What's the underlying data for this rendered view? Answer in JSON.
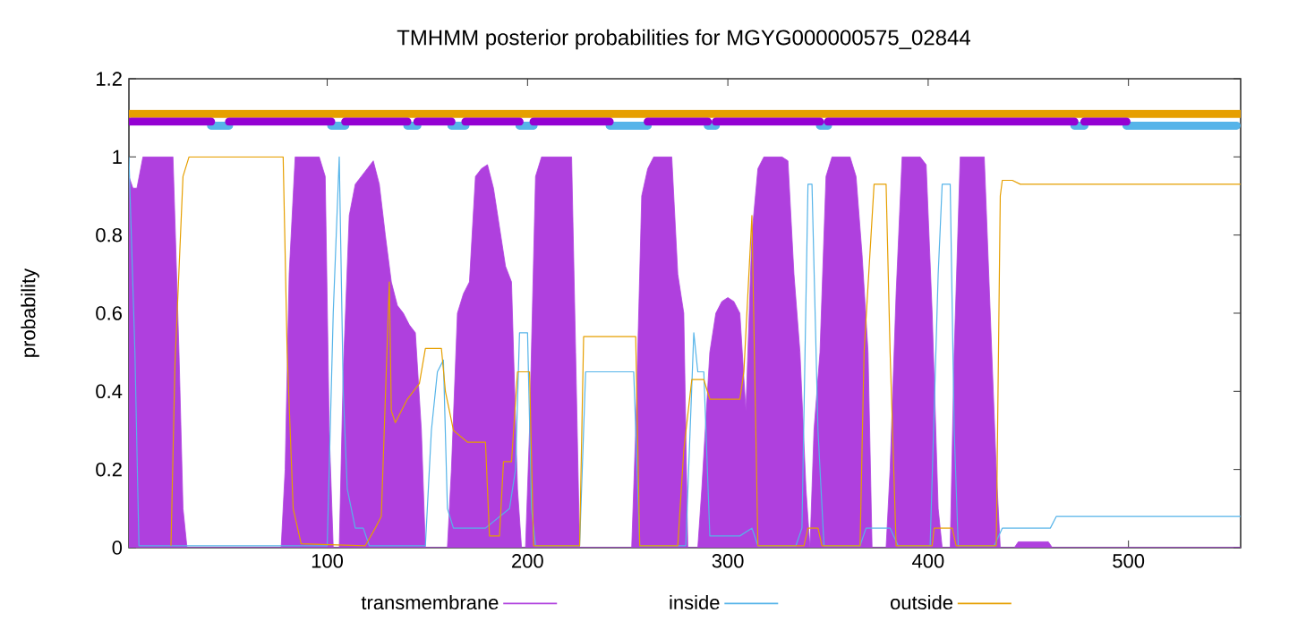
{
  "chart_data": {
    "type": "line",
    "title": "TMHMM posterior probabilities for MGYG000000575_02844",
    "ylabel": "probability",
    "xlim": [
      1,
      556
    ],
    "ylim": [
      0,
      1.2
    ],
    "xticks": [
      100,
      200,
      300,
      400,
      500
    ],
    "yticks": [
      0,
      0.2,
      0.4,
      0.6,
      0.8,
      1,
      1.2
    ],
    "legend": "bottom",
    "series": [
      {
        "name": "transmembrane",
        "type": "area",
        "color": "#af40de",
        "x": [
          1,
          3,
          5,
          8,
          11,
          14,
          17,
          20,
          23,
          26,
          28,
          30,
          77,
          79,
          81,
          84,
          87,
          90,
          93,
          96,
          99,
          101,
          103,
          106,
          108,
          111,
          114,
          117,
          120,
          123,
          126,
          129,
          132,
          135,
          138,
          141,
          144,
          147,
          149,
          160,
          162,
          165,
          168,
          171,
          174,
          177,
          180,
          183,
          186,
          189,
          192,
          195,
          197,
          199,
          201,
          204,
          207,
          210,
          213,
          216,
          219,
          222,
          224,
          226,
          252,
          254,
          257,
          260,
          263,
          266,
          269,
          272,
          275,
          278,
          280,
          285,
          287,
          291,
          294,
          297,
          300,
          303,
          306,
          309,
          312,
          315,
          318,
          321,
          324,
          327,
          330,
          333,
          336,
          339,
          341,
          343,
          346,
          349,
          352,
          355,
          358,
          361,
          364,
          367,
          370,
          372,
          379,
          381,
          384,
          387,
          390,
          393,
          396,
          399,
          402,
          405,
          407,
          411,
          413,
          416,
          419,
          422,
          425,
          428,
          431,
          434,
          436,
          443,
          445,
          450,
          455,
          460,
          462,
          556
        ],
        "values": [
          0.95,
          0.92,
          0.92,
          1,
          1,
          1,
          1,
          1,
          1,
          0.5,
          0.1,
          0,
          0,
          0.2,
          0.7,
          1,
          1,
          1,
          1,
          1,
          0.95,
          0.3,
          0,
          0,
          0.45,
          0.85,
          0.93,
          0.95,
          0.97,
          0.99,
          0.93,
          0.8,
          0.68,
          0.62,
          0.6,
          0.57,
          0.55,
          0.3,
          0,
          0,
          0.2,
          0.6,
          0.65,
          0.68,
          0.95,
          0.97,
          0.98,
          0.92,
          0.82,
          0.72,
          0.68,
          0.15,
          0,
          0,
          0.3,
          0.95,
          1,
          1,
          1,
          1,
          1,
          1,
          0.5,
          0,
          0,
          0.3,
          0.9,
          0.97,
          1,
          1,
          1,
          1,
          0.7,
          0.6,
          0,
          0,
          0.15,
          0.5,
          0.6,
          0.63,
          0.64,
          0.63,
          0.6,
          0.35,
          0.8,
          0.97,
          1,
          1,
          1,
          1,
          0.99,
          0.7,
          0.5,
          0.15,
          0,
          0.3,
          0.5,
          0.95,
          1,
          1,
          1,
          1,
          0.95,
          0.75,
          0.5,
          0,
          0,
          0.2,
          0.65,
          1,
          1,
          1,
          1,
          0.98,
          0.6,
          0.1,
          0,
          0,
          0.5,
          1,
          1,
          1,
          1,
          1,
          0.6,
          0.2,
          0,
          0,
          0.015,
          0.015,
          0.015,
          0.015,
          0,
          0
        ]
      },
      {
        "name": "inside",
        "color": "#56b4e9",
        "x": [
          1,
          4,
          6,
          100,
          103,
          106,
          108,
          110,
          114,
          118,
          121,
          149,
          152,
          155,
          158,
          160,
          163,
          179,
          191,
          194,
          196,
          200,
          202,
          204,
          226,
          229,
          253,
          256,
          279,
          283,
          285,
          288,
          291,
          306,
          312,
          315,
          334,
          337,
          340,
          342,
          345,
          348,
          366,
          369,
          381,
          385,
          401,
          405,
          407,
          411,
          413,
          415,
          433,
          437,
          461,
          464,
          556
        ],
        "values": [
          1,
          0.5,
          0.005,
          0.005,
          0.6,
          1,
          0.4,
          0.15,
          0.05,
          0.05,
          0.005,
          0.005,
          0.3,
          0.45,
          0.48,
          0.1,
          0.05,
          0.05,
          0.1,
          0.2,
          0.55,
          0.55,
          0.1,
          0.005,
          0.005,
          0.45,
          0.45,
          0.005,
          0.005,
          0.55,
          0.45,
          0.45,
          0.03,
          0.03,
          0.05,
          0.005,
          0.005,
          0.05,
          0.93,
          0.93,
          0.3,
          0.005,
          0.005,
          0.05,
          0.05,
          0.005,
          0.005,
          0.7,
          0.93,
          0.93,
          0.3,
          0.005,
          0.005,
          0.05,
          0.05,
          0.08,
          0.08
        ]
      },
      {
        "name": "outside",
        "color": "#e69f00",
        "x": [
          22,
          24,
          28,
          31,
          78,
          80,
          83,
          87,
          119,
          124,
          127,
          131,
          132,
          134,
          140,
          146,
          149,
          157,
          159,
          163,
          170,
          179,
          181,
          186,
          188,
          192,
          195,
          201,
          203,
          226,
          228,
          254,
          256,
          275,
          278,
          282,
          288,
          291,
          306,
          308,
          312,
          315,
          338,
          340,
          345,
          347,
          366,
          368,
          373,
          379,
          381,
          384,
          402,
          403,
          412,
          414,
          434,
          436,
          437,
          442,
          446,
          556
        ],
        "values": [
          0.005,
          0.47,
          0.95,
          1,
          1,
          0.5,
          0.1,
          0.01,
          0.005,
          0.05,
          0.08,
          0.68,
          0.35,
          0.32,
          0.38,
          0.42,
          0.51,
          0.51,
          0.4,
          0.3,
          0.27,
          0.27,
          0.03,
          0.03,
          0.22,
          0.22,
          0.45,
          0.45,
          0.005,
          0.005,
          0.54,
          0.54,
          0.005,
          0.005,
          0.25,
          0.43,
          0.43,
          0.38,
          0.38,
          0.45,
          0.85,
          0.005,
          0.005,
          0.05,
          0.05,
          0.005,
          0.005,
          0.5,
          0.93,
          0.93,
          0.5,
          0.005,
          0.005,
          0.05,
          0.05,
          0.005,
          0.005,
          0.9,
          0.94,
          0.94,
          0.93,
          0.93
        ]
      },
      {
        "color": "#e69f00",
        "x": [
          1,
          556
        ],
        "values": [
          1.11,
          1.11
        ]
      },
      {
        "color": "#56b4e9",
        "x": [
          42,
          51,
          76,
          102,
          109,
          124,
          140,
          145,
          153,
          162,
          169,
          182,
          196,
          203,
          222,
          241,
          260,
          275,
          290,
          294,
          320,
          346,
          350,
          411,
          473,
          478,
          488,
          499,
          554
        ],
        "values": [
          1.08,
          1.08,
          null,
          1.08,
          1.08,
          null,
          1.08,
          1.08,
          null,
          1.08,
          1.08,
          null,
          1.08,
          1.08,
          null,
          1.08,
          1.08,
          null,
          1.08,
          1.08,
          null,
          1.08,
          1.08,
          null,
          1.08,
          1.08,
          null,
          1.08,
          1.08
        ]
      },
      {
        "color": "#9400d3",
        "x": [
          2,
          42,
          46,
          51,
          102,
          105,
          109,
          140,
          142,
          145,
          162,
          165,
          169,
          196,
          200,
          203,
          241,
          250,
          260,
          290,
          292,
          294,
          346,
          348,
          350,
          473,
          475,
          478,
          499
        ],
        "values": [
          1.09,
          1.09,
          null,
          1.09,
          1.09,
          null,
          1.09,
          1.09,
          null,
          1.09,
          1.09,
          null,
          1.09,
          1.09,
          null,
          1.09,
          1.09,
          null,
          1.09,
          1.09,
          null,
          1.09,
          1.09,
          null,
          1.09,
          1.09,
          null,
          1.09,
          1.09
        ]
      }
    ]
  }
}
